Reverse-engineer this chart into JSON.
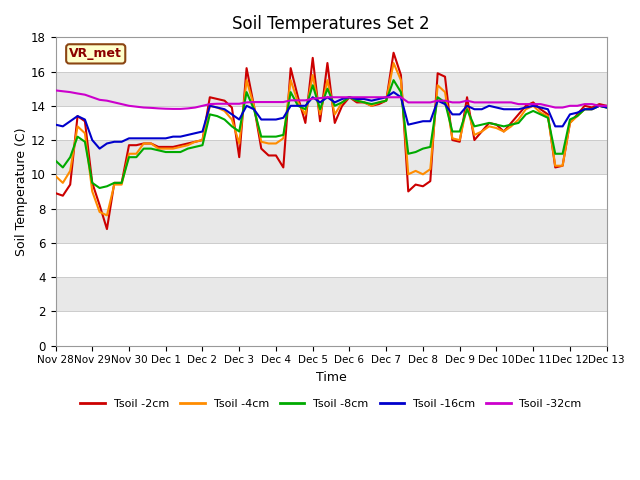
{
  "title": "Soil Temperatures Set 2",
  "xlabel": "Time",
  "ylabel": "Soil Temperature (C)",
  "ylim": [
    0,
    18
  ],
  "yticks": [
    0,
    2,
    4,
    6,
    8,
    10,
    12,
    14,
    16,
    18
  ],
  "annotation": "VR_met",
  "fig_facecolor": "#ffffff",
  "plot_facecolor": "#ffffff",
  "band_light": "#ffffff",
  "band_dark": "#e8e8e8",
  "line_colors": {
    "2cm": "#cc0000",
    "4cm": "#ff8c00",
    "8cm": "#00aa00",
    "16cm": "#0000cc",
    "32cm": "#cc00cc"
  },
  "legend_labels": [
    "Tsoil -2cm",
    "Tsoil -4cm",
    "Tsoil -8cm",
    "Tsoil -16cm",
    "Tsoil -32cm"
  ],
  "x_tick_labels": [
    "Nov 28",
    "Nov 29",
    "Nov 30",
    "Dec 1",
    "Dec 2",
    "Dec 3",
    "Dec 4",
    "Dec 5",
    "Dec 6",
    "Dec 7",
    "Dec 8",
    "Dec 9",
    "Dec 10",
    "Dec 11",
    "Dec 12",
    "Dec 13"
  ],
  "t2cm": [
    8.9,
    8.75,
    9.4,
    13.4,
    13.1,
    9.5,
    8.2,
    6.8,
    9.5,
    9.5,
    11.7,
    11.7,
    11.8,
    11.8,
    11.6,
    11.6,
    11.6,
    11.7,
    11.8,
    11.9,
    12.0,
    14.5,
    14.4,
    14.3,
    13.9,
    11.0,
    16.2,
    14.0,
    11.5,
    11.1,
    11.1,
    10.4,
    16.2,
    14.5,
    13.0,
    16.8,
    13.1,
    16.5,
    13.0,
    14.0,
    14.5,
    14.2,
    14.2,
    14.0,
    14.1,
    14.3,
    17.1,
    15.8,
    9.0,
    9.4,
    9.3,
    9.6,
    15.9,
    15.7,
    12.0,
    11.9,
    14.5,
    12.0,
    12.5,
    13.0,
    12.9,
    12.5,
    13.0,
    13.5,
    14.0,
    14.2,
    13.8,
    13.5,
    10.4,
    10.5,
    13.0,
    13.5,
    14.0,
    13.9,
    14.1,
    14.0
  ],
  "t4cm": [
    9.9,
    9.5,
    10.2,
    12.8,
    12.4,
    9.0,
    7.8,
    7.6,
    9.4,
    9.4,
    11.2,
    11.2,
    11.8,
    11.8,
    11.5,
    11.5,
    11.5,
    11.6,
    11.7,
    11.9,
    12.0,
    14.0,
    13.9,
    13.7,
    13.2,
    11.8,
    15.5,
    14.0,
    11.9,
    11.8,
    11.8,
    12.1,
    15.5,
    14.2,
    13.5,
    15.8,
    13.5,
    15.5,
    13.5,
    14.2,
    14.5,
    14.3,
    14.2,
    14.0,
    14.2,
    14.3,
    16.5,
    15.5,
    10.0,
    10.2,
    10.0,
    10.3,
    15.2,
    14.8,
    12.1,
    12.0,
    14.0,
    12.3,
    12.5,
    12.8,
    12.7,
    12.5,
    12.8,
    13.2,
    13.8,
    14.0,
    13.6,
    13.4,
    10.5,
    10.5,
    13.0,
    13.4,
    13.8,
    13.8,
    14.0,
    13.9
  ],
  "t8cm": [
    10.8,
    10.4,
    11.0,
    12.2,
    11.9,
    9.5,
    9.2,
    9.3,
    9.5,
    9.5,
    11.0,
    11.0,
    11.5,
    11.5,
    11.4,
    11.3,
    11.3,
    11.3,
    11.5,
    11.6,
    11.7,
    13.5,
    13.4,
    13.2,
    12.8,
    12.5,
    14.8,
    13.8,
    12.2,
    12.2,
    12.2,
    12.3,
    14.8,
    14.0,
    13.8,
    15.2,
    13.8,
    15.0,
    14.0,
    14.2,
    14.5,
    14.3,
    14.2,
    14.1,
    14.2,
    14.3,
    15.5,
    14.8,
    11.2,
    11.3,
    11.5,
    11.6,
    14.5,
    14.2,
    12.5,
    12.5,
    13.8,
    12.8,
    12.9,
    13.0,
    12.9,
    12.8,
    12.9,
    13.0,
    13.5,
    13.7,
    13.5,
    13.3,
    11.2,
    11.2,
    13.2,
    13.4,
    13.8,
    13.8,
    14.0,
    13.9
  ],
  "t16cm": [
    12.9,
    12.8,
    13.1,
    13.4,
    13.2,
    12.0,
    11.5,
    11.8,
    11.9,
    11.9,
    12.1,
    12.1,
    12.1,
    12.1,
    12.1,
    12.1,
    12.2,
    12.2,
    12.3,
    12.4,
    12.5,
    14.0,
    13.9,
    13.8,
    13.5,
    13.2,
    14.0,
    13.8,
    13.2,
    13.2,
    13.2,
    13.3,
    14.0,
    14.0,
    14.0,
    14.5,
    14.2,
    14.5,
    14.2,
    14.4,
    14.5,
    14.4,
    14.4,
    14.3,
    14.4,
    14.5,
    14.8,
    14.5,
    12.9,
    13.0,
    13.1,
    13.1,
    14.3,
    14.1,
    13.5,
    13.5,
    14.0,
    13.8,
    13.8,
    14.0,
    13.9,
    13.8,
    13.8,
    13.8,
    13.9,
    14.0,
    13.9,
    13.8,
    12.8,
    12.8,
    13.5,
    13.6,
    13.8,
    13.8,
    14.0,
    13.9
  ],
  "t32cm": [
    14.9,
    14.85,
    14.8,
    14.72,
    14.65,
    14.5,
    14.35,
    14.3,
    14.2,
    14.1,
    14.0,
    13.95,
    13.9,
    13.88,
    13.85,
    13.83,
    13.82,
    13.82,
    13.85,
    13.9,
    14.0,
    14.1,
    14.12,
    14.12,
    14.12,
    14.12,
    14.2,
    14.22,
    14.22,
    14.22,
    14.22,
    14.22,
    14.32,
    14.32,
    14.32,
    14.42,
    14.45,
    14.5,
    14.5,
    14.5,
    14.5,
    14.5,
    14.5,
    14.5,
    14.5,
    14.5,
    14.5,
    14.5,
    14.2,
    14.2,
    14.2,
    14.2,
    14.3,
    14.3,
    14.2,
    14.2,
    14.3,
    14.2,
    14.2,
    14.2,
    14.2,
    14.2,
    14.2,
    14.1,
    14.1,
    14.1,
    14.1,
    14.0,
    13.9,
    13.9,
    14.0,
    14.0,
    14.1,
    14.1,
    14.0,
    14.0
  ]
}
